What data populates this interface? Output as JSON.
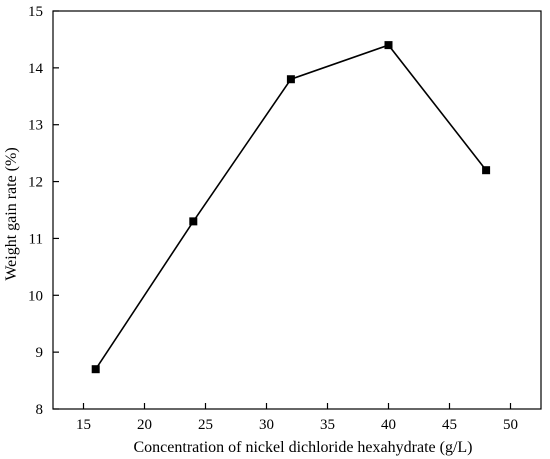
{
  "chart_data": {
    "type": "line",
    "title": "",
    "xlabel": "Concentration of nickel dichloride hexahydrate (g/L)",
    "ylabel": "Weight gain rate (%)",
    "xlim": [
      12.5,
      52.5
    ],
    "ylim": [
      8,
      15
    ],
    "xticks": [
      15,
      20,
      25,
      30,
      35,
      40,
      45,
      50
    ],
    "yticks": [
      8,
      9,
      10,
      11,
      12,
      13,
      14,
      15
    ],
    "grid": false,
    "legend": "none",
    "series": [
      {
        "x": [
          16,
          24,
          32,
          40,
          48
        ],
        "values": [
          8.7,
          11.3,
          13.8,
          14.4,
          12.2
        ],
        "marker": "square",
        "color": "#000000"
      }
    ]
  }
}
